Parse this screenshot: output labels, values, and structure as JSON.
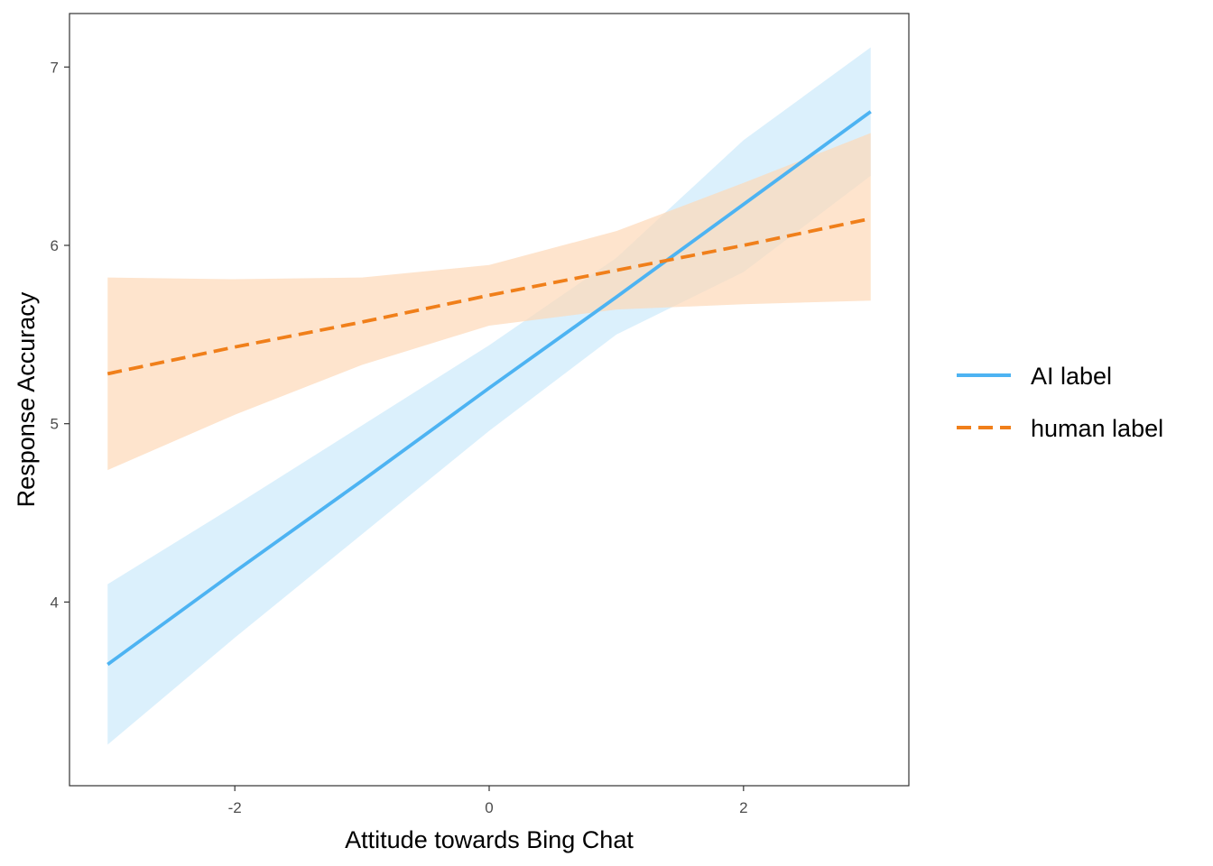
{
  "chart_data": {
    "type": "line",
    "title": "",
    "xlabel": "Attitude towards Bing Chat",
    "ylabel": "Response Accuracy",
    "xlim": [
      -3.3,
      3.3
    ],
    "ylim": [
      2.97,
      7.3
    ],
    "x_ticks": [
      -2,
      0,
      2
    ],
    "y_ticks": [
      4,
      5,
      6,
      7
    ],
    "x_tick_labels": [
      "-2",
      "0",
      "2"
    ],
    "y_tick_labels": [
      "4",
      "5",
      "6",
      "7"
    ],
    "grid": false,
    "legend_position": "right",
    "series": [
      {
        "name": "AI label",
        "color": "#4db3f2",
        "ribbon_color": "#cce9fb",
        "dash": "solid",
        "x": [
          -3,
          -2,
          -1,
          0,
          1,
          2,
          3
        ],
        "y": [
          3.65,
          4.17,
          4.68,
          5.2,
          5.71,
          6.23,
          6.75
        ],
        "lower": [
          3.2,
          3.8,
          4.38,
          4.96,
          5.5,
          5.85,
          6.39
        ],
        "upper": [
          4.1,
          4.54,
          4.99,
          5.44,
          5.93,
          6.59,
          7.11
        ]
      },
      {
        "name": "human label",
        "color": "#f07f1a",
        "ribbon_color": "#fdd9b8",
        "dash": "dashed",
        "x": [
          -3,
          -2,
          -1,
          0,
          1,
          2,
          3
        ],
        "y": [
          5.28,
          5.43,
          5.57,
          5.72,
          5.86,
          6.0,
          6.15
        ],
        "lower": [
          4.74,
          5.05,
          5.33,
          5.55,
          5.64,
          5.67,
          5.69
        ],
        "upper": [
          5.82,
          5.81,
          5.82,
          5.89,
          6.08,
          6.35,
          6.63
        ]
      }
    ]
  }
}
